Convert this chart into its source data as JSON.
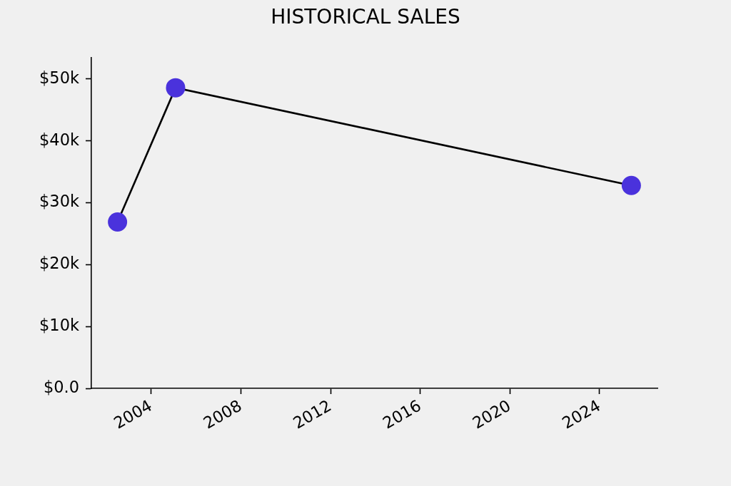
{
  "chart_data": {
    "type": "line",
    "title": "HISTORICAL SALES",
    "x": [
      "2002-07",
      "2005-02",
      "2025-06"
    ],
    "series": [
      {
        "color": "#000000",
        "colors": [
          "#4a32dc",
          "#4a32dc",
          "#4a32dc"
        ],
        "values": [
          26900,
          48600,
          32800
        ]
      }
    ],
    "xlim": [
      "2001-05",
      "2026-08"
    ],
    "xticks": [
      "2004",
      "2008",
      "2012",
      "2016",
      "2020",
      "2024"
    ],
    "ylim": [
      0,
      53500
    ],
    "yticks": [
      {
        "value": 0,
        "label": "$0.0"
      },
      {
        "value": 10000,
        "label": "$10k"
      },
      {
        "value": 20000,
        "label": "$20k"
      },
      {
        "value": 30000,
        "label": "$30k"
      },
      {
        "value": 40000,
        "label": "$40k"
      },
      {
        "value": 50000,
        "label": "$50k"
      }
    ],
    "marker": "circle",
    "line_style": "solid",
    "legend": false,
    "grid": false
  }
}
